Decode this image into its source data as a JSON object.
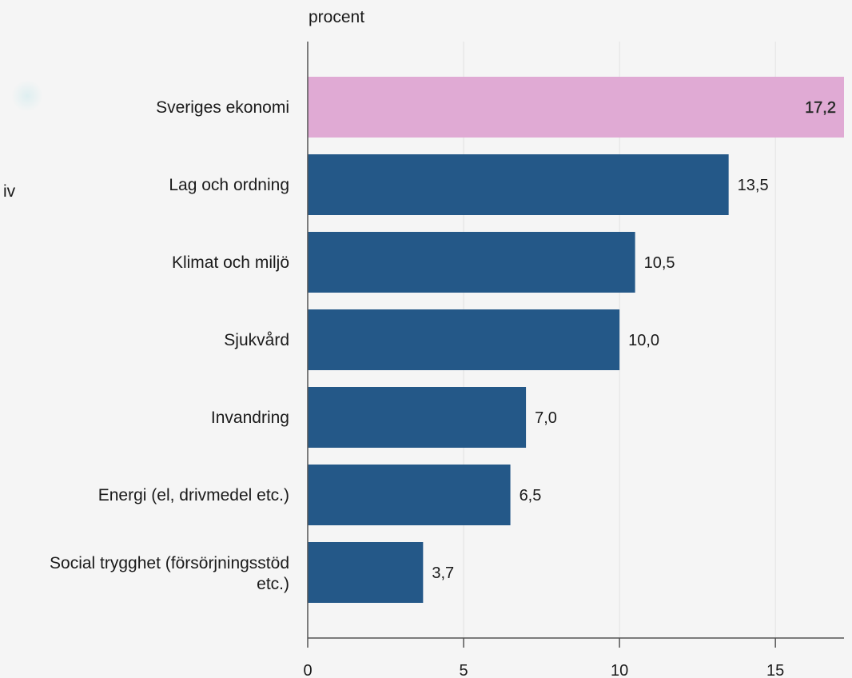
{
  "fragment_text": "iv",
  "chart_data": {
    "type": "bar",
    "orientation": "horizontal",
    "ylabel": "procent",
    "categories": [
      "Sveriges ekonomi",
      "Lag och ordning",
      "Klimat och miljö",
      "Sjukvård",
      "Invandring",
      "Energi (el, drivmedel etc.)",
      "Social trygghet (försörjningsstöd etc.)"
    ],
    "values": [
      17.2,
      13.5,
      10.5,
      10.0,
      7.0,
      6.5,
      3.7
    ],
    "value_labels": [
      "17,2",
      "13,5",
      "10,5",
      "10,0",
      "7,0",
      "6,5",
      "3,7"
    ],
    "xlim": [
      0,
      17.2
    ],
    "xticks": [
      0,
      5,
      10,
      15
    ],
    "grid": true,
    "highlight_index": 0,
    "colors": {
      "bar": "#245888",
      "highlight": "#e0aad4",
      "grid": "#e2e2e2",
      "axis": "#555555"
    }
  }
}
